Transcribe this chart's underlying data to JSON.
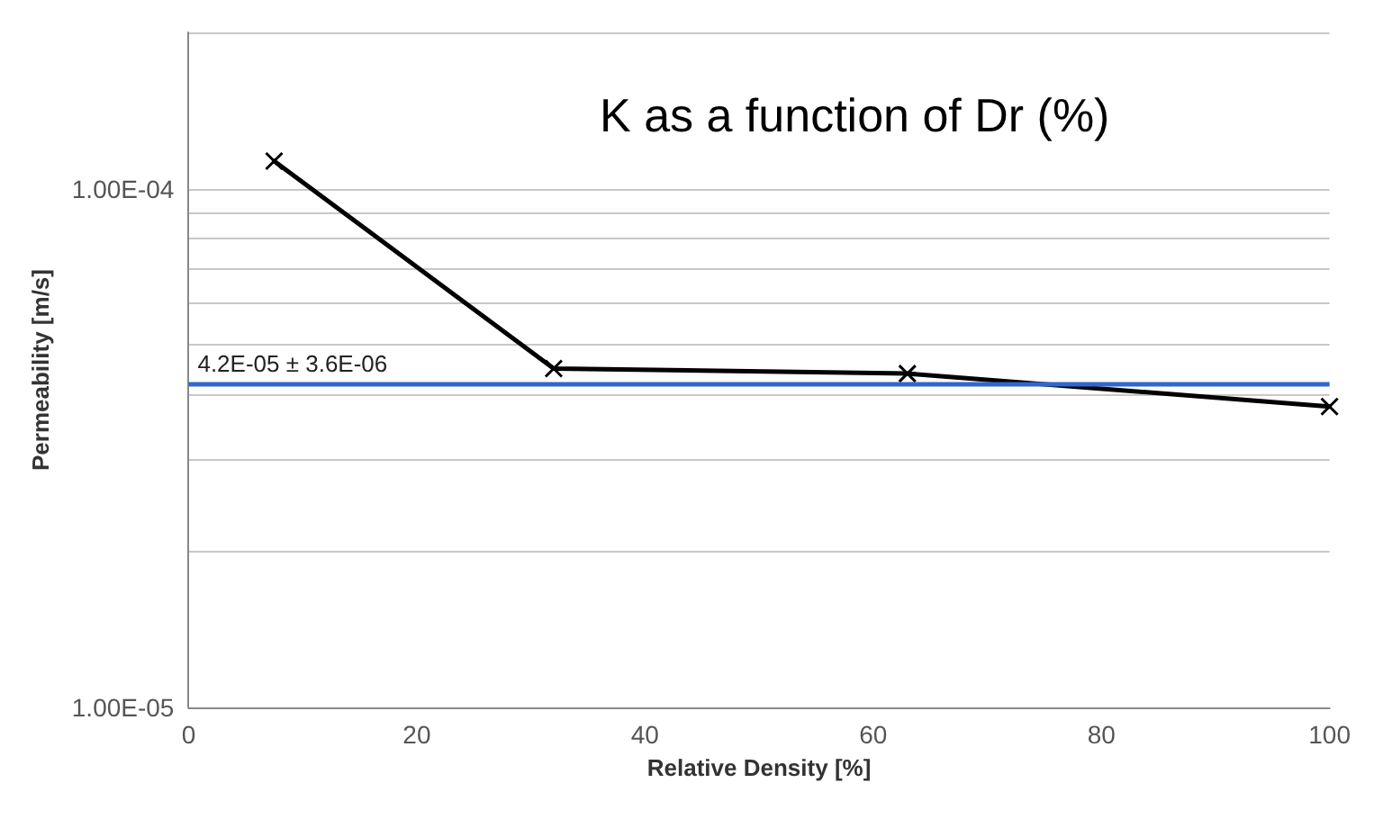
{
  "chart_data": {
    "type": "line",
    "title": "K as a function of Dr (%)",
    "xlabel": "Relative Density [%]",
    "ylabel": "Permeability [m/s]",
    "x": [
      7.5,
      32,
      63,
      100
    ],
    "series": [
      {
        "color": "#000000",
        "values": [
          0.000113,
          4.5e-05,
          4.4e-05,
          3.8e-05
        ]
      }
    ],
    "xlim": [
      0,
      100
    ],
    "xticks": [
      0,
      20,
      40,
      60,
      80,
      100
    ],
    "ylim": [
      1e-05,
      0.0002
    ],
    "log": "y",
    "yticks": [
      {
        "value": 1e-05,
        "label": "1.00E-05"
      },
      {
        "value": 2e-05,
        "label": null
      },
      {
        "value": 3e-05,
        "label": null
      },
      {
        "value": 4e-05,
        "label": null
      },
      {
        "value": 5e-05,
        "label": null
      },
      {
        "value": 6e-05,
        "label": null
      },
      {
        "value": 7e-05,
        "label": null
      },
      {
        "value": 8e-05,
        "label": null
      },
      {
        "value": 9e-05,
        "label": null
      },
      {
        "value": 0.0001,
        "label": "1.00E-04"
      },
      {
        "value": 0.0002,
        "label": null
      }
    ],
    "ref_lines": [
      {
        "axis": "y",
        "value": 4.2e-05,
        "label": "4.2E-05 ± 3.6E-06",
        "color": "#3366cc"
      }
    ],
    "grid": "y",
    "marker": "cross",
    "line_style": "solid"
  }
}
